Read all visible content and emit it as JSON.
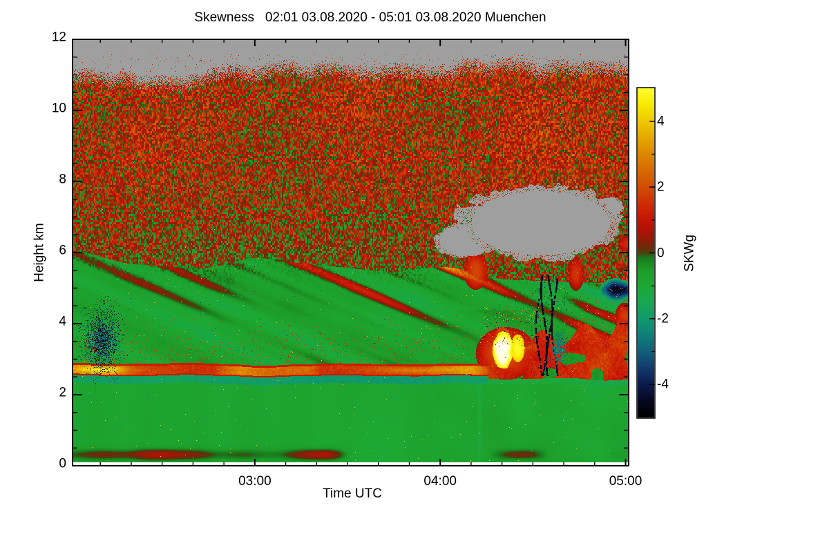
{
  "page": {
    "background": "#ffffff"
  },
  "figure": {
    "title": "Skewness   02:01 03.08.2020 - 05:01 03.08.2020 Muenchen",
    "x_axis": {
      "label": "Time UTC",
      "start_time": "02:01",
      "end_time": "05:01",
      "major_ticks": [
        {
          "t_min": 59,
          "label": "03:00"
        },
        {
          "t_min": 119,
          "label": "04:00"
        },
        {
          "t_min": 179,
          "label": "05:00"
        }
      ],
      "minor_step_min": 10
    },
    "y_axis": {
      "label": "Height km",
      "major_ticks": [
        0,
        2,
        4,
        6,
        8,
        10,
        12
      ],
      "minor_step_km": 0.5,
      "range_km": [
        0,
        12
      ]
    },
    "colorbar": {
      "label": "SKWg",
      "major_ticks": [
        4,
        2,
        0,
        -2,
        -4
      ],
      "minor_step": 1,
      "range": [
        -5,
        5
      ]
    }
  },
  "chart_data": {
    "type": "heatmap",
    "title": "Skewness   02:01 03.08.2020 - 05:01 03.08.2020 Muenchen",
    "xlabel": "Time UTC",
    "ylabel": "Height km",
    "x_start": "02:01 03.08.2020",
    "x_end": "05:01 03.08.2020",
    "site": "Muenchen",
    "x_tick_labels": [
      "03:00",
      "04:00",
      "05:00"
    ],
    "x_range_minutes": [
      0,
      180
    ],
    "ylim_km": [
      0,
      12
    ],
    "colorbar_label": "SKWg",
    "value_range": [
      -5,
      5
    ],
    "no_data_color": "#9f9f9f",
    "colormap_stops": [
      [
        -5.0,
        "#000000"
      ],
      [
        -4.5,
        "#06081f"
      ],
      [
        -4.0,
        "#0c1a4d"
      ],
      [
        -3.5,
        "#123b6e"
      ],
      [
        -3.0,
        "#135f7c"
      ],
      [
        -2.5,
        "#0f8079"
      ],
      [
        -2.0,
        "#119a6c"
      ],
      [
        -1.5,
        "#18a751"
      ],
      [
        -1.0,
        "#1ea834"
      ],
      [
        -0.5,
        "#1d9c29"
      ],
      [
        -0.15,
        "#187a1d"
      ],
      [
        0.0,
        "#4a400d"
      ],
      [
        0.25,
        "#7c2309"
      ],
      [
        0.6,
        "#a81507"
      ],
      [
        1.0,
        "#c61405"
      ],
      [
        1.5,
        "#ce2d05"
      ],
      [
        2.0,
        "#d24e03"
      ],
      [
        2.5,
        "#d76a02"
      ],
      [
        3.0,
        "#dd8802"
      ],
      [
        3.5,
        "#e6a901"
      ],
      [
        4.0,
        "#efc901"
      ],
      [
        4.5,
        "#f9ea02"
      ],
      [
        5.0,
        "#fdfd2e"
      ],
      [
        5.6,
        "#ffffcc"
      ],
      [
        6.5,
        "#ffffff"
      ]
    ],
    "features": {
      "clear_air_top": {
        "kind": "no_data_above",
        "base_km": 11.08,
        "raggedness_km": 0.5
      },
      "upper_speckle_layer": {
        "kind": "speckle_layer",
        "mean_skw": 0.45,
        "speckle_amp": 1.35,
        "bottom_left_km": 5.92,
        "bottom_right_km": 5.2
      },
      "fall_streak_zone": {
        "kind": "smooth_layer",
        "mean_skw": -0.78,
        "streak_skw": -1.3,
        "streak_tilt": 2.3,
        "red_streak_centers_min": [
          46,
          112
        ]
      },
      "cloud_base_band": {
        "kind": "horizontal_band",
        "h_km": [
          2.52,
          2.85
        ],
        "skw": 1.55,
        "core_skw": 2.6,
        "core_centers_min": [
          9,
          111
        ],
        "step_min": 134.4,
        "right_top_km": 3.0,
        "right_wedge_centers_min": [
          139,
          152,
          166,
          180
        ]
      },
      "sub_band_teal": {
        "kind": "horizontal_band",
        "h_km": [
          2.3,
          2.52
        ],
        "skw": -1.85
      },
      "boundary_layer": {
        "kind": "smooth_layer",
        "h_km": [
          0,
          2.3
        ],
        "mean_skw": -0.85,
        "smudge_h_km": 0.32,
        "dark_column_min": 131.7
      },
      "gray_cloud": {
        "kind": "no_data_blob",
        "t_min": 151.4,
        "h_km": 6.84,
        "rt_min": 26.4,
        "rh_km": 1.05,
        "lobes": [
          {
            "t_min": 126.8,
            "h_km": 6.35,
            "rt_min": 9.4,
            "rh_km": 0.51
          },
          {
            "t_min": 172.8,
            "h_km": 7.28,
            "rt_min": 5.8,
            "rh_km": 0.31
          }
        ]
      },
      "yellow_burst": {
        "kind": "positive_burst",
        "t_min": 139.1,
        "h_km": 3.26,
        "rt_min": 3.35,
        "rh_km": 0.52,
        "peak_skw": 5,
        "secondary": {
          "t_min": 144.0,
          "h_km": 3.32,
          "rt_min": 2.24,
          "rh_km": 0.39,
          "peak_skw": 4.3
        },
        "surround": {
          "t_min": 140.2,
          "h_km": 3.17,
          "rt_min": 9.8,
          "rh_km": 0.74,
          "skw": 2.1
        },
        "halo_t_min": [
          132,
          149.8
        ],
        "halo_h_km": [
          3.34,
          4.5
        ]
      },
      "navy_patch_left": {
        "kind": "negative_speckle_patch",
        "t_min": 9.4,
        "h_km": 3.55,
        "rt_min": 5.4,
        "rh_km": 0.82,
        "min_skw": -5
      },
      "navy_streaks": {
        "kind": "negative_streaks",
        "t0_min": 150.8,
        "step_min": 1.7,
        "count": 4,
        "h_km": [
          2.66,
          5.22
        ],
        "min_skw": -5,
        "teal_companion": {
          "t_min": 157.2,
          "h_km": 3.34,
          "rt_min": 2.5,
          "rh_km": 0.52,
          "skw": -2.5
        }
      },
      "navy_patch_right": {
        "kind": "negative_patch",
        "t_min": 176.2,
        "h_km": 4.97,
        "rt_min": 5.6,
        "rh_km": 0.31,
        "min_skw": -4.6
      },
      "red_patches": [
        {
          "t_min": 130.4,
          "h_km": 5.5,
          "rt_min": 4.0,
          "rh_km": 0.54,
          "skw": 2.0
        },
        {
          "t_min": 162.8,
          "h_km": 5.42,
          "rt_min": 2.7,
          "rh_km": 0.49,
          "skw": 1.7
        },
        {
          "t_min": 178.7,
          "h_km": 4.25,
          "rt_min": 3.1,
          "rh_km": 0.35,
          "skw": 1.8
        },
        {
          "t_min": 179.1,
          "h_km": 6.25,
          "rt_min": 2.7,
          "rh_km": 0.27,
          "skw": 1.6
        }
      ],
      "right_red_wedges": {
        "kind": "positive_streak_zone",
        "t_min": [
          156,
          180
        ],
        "h_km": [
          3.1,
          6.3
        ],
        "skw": 1.8
      }
    }
  }
}
